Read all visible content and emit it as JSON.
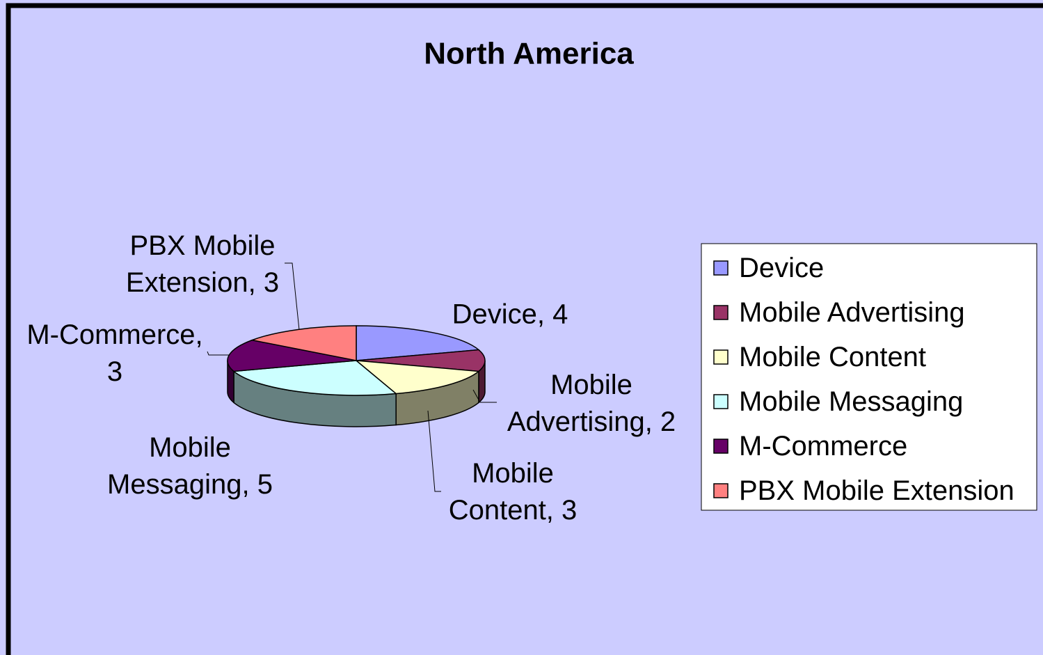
{
  "chart_data": {
    "type": "pie",
    "title": "North America",
    "categories": [
      "Device",
      "Mobile Advertising",
      "Mobile Content",
      "Mobile Messaging",
      "M-Commerce",
      "PBX Mobile Extension"
    ],
    "values": [
      4,
      2,
      3,
      5,
      3,
      3
    ],
    "value_labels": [
      "Device, 4",
      "Mobile Advertising, 2",
      "Mobile Content, 3",
      "Mobile Messaging, 5",
      "M-Commerce, 3",
      "PBX Mobile Extension, 3"
    ],
    "colors": [
      "#9999ff",
      "#993366",
      "#ffffcc",
      "#ccffff",
      "#660066",
      "#ff8080"
    ],
    "legend": "right"
  }
}
